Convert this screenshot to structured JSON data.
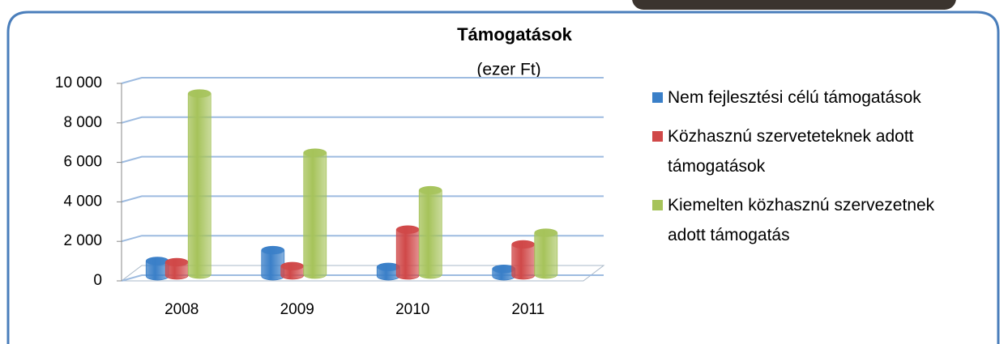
{
  "chart_data": {
    "type": "bar3d",
    "title": "Támogatások",
    "subtitle": "(ezer Ft)",
    "categories": [
      "2008",
      "2009",
      "2010",
      "2011"
    ],
    "series": [
      {
        "name": "Nem fejlesztési célú támogatások",
        "color": "#3a7fc8",
        "values": [
          750,
          1300,
          450,
          350
        ]
      },
      {
        "name": "Közhasznú szerveteteknek adott támogatások",
        "color": "#d04848",
        "values": [
          650,
          450,
          2300,
          1550
        ]
      },
      {
        "name": "Kiemelten közhasznú szervezetnek adott támogatás",
        "color": "#a6c35a",
        "values": [
          9150,
          6150,
          4250,
          2100
        ]
      }
    ],
    "ylim": [
      0,
      10000
    ],
    "yticks": [
      0,
      {
        "value": 2000,
        "label": "2 000"
      },
      {
        "value": 4000,
        "label": "4 000"
      },
      {
        "value": 6000,
        "label": "6 000"
      },
      {
        "value": 8000,
        "label": "8 000"
      },
      {
        "value": 10000,
        "label": "10 000"
      }
    ],
    "grid": true,
    "legend": "right"
  }
}
